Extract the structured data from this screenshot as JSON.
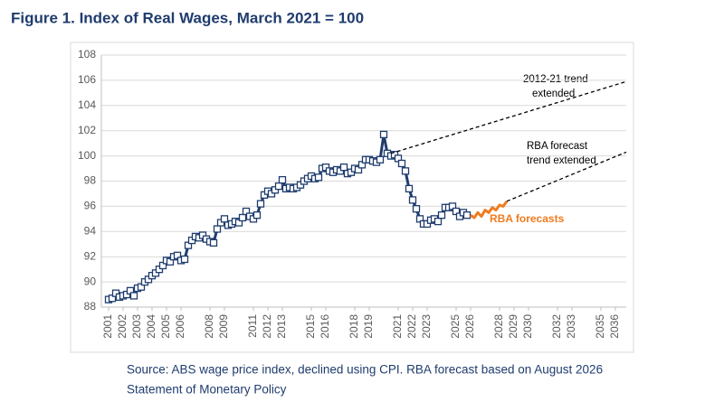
{
  "chart_data": {
    "type": "line",
    "title": "Figure 1. Index of Real Wages, March 2021 = 100",
    "source": [
      "Source: ABS wage price index, declined using CPI. RBA forecast based on August 2026",
      "Statement of Monetary Policy"
    ],
    "annotations": [
      "2012-21 trend",
      "extended",
      "RBA forecast",
      "trend extended",
      "RBA forecasts"
    ],
    "xlim": [
      2000.5,
      2036.75
    ],
    "xticks": [
      2001,
      2002,
      2003,
      2004,
      2005,
      2006,
      2008,
      2009,
      2011,
      2012,
      2013,
      2015,
      2016,
      2018,
      2019,
      2021,
      2022,
      2023,
      2025,
      2026,
      2028,
      2029,
      2030,
      2032,
      2033,
      2035,
      2036
    ],
    "ylim": [
      88,
      108
    ],
    "yticks": [
      88,
      90,
      92,
      94,
      96,
      98,
      100,
      102,
      104,
      106,
      108
    ],
    "grid": true,
    "series": [
      {
        "color": "#1f3c6e",
        "style": "solid",
        "marker": "square",
        "x": [
          2001,
          2001.25,
          2001.5,
          2001.75,
          2002,
          2002.25,
          2002.5,
          2002.75,
          2003,
          2003.25,
          2003.5,
          2003.75,
          2004,
          2004.25,
          2004.5,
          2004.75,
          2005,
          2005.25,
          2005.5,
          2005.75,
          2006,
          2006.25,
          2006.5,
          2006.75,
          2007,
          2007.25,
          2007.5,
          2007.75,
          2008,
          2008.25,
          2008.5,
          2008.75,
          2009,
          2009.25,
          2009.5,
          2009.75,
          2010,
          2010.25,
          2010.5,
          2010.75,
          2011,
          2011.25,
          2011.5,
          2011.75,
          2012,
          2012.25,
          2012.5,
          2012.75,
          2013,
          2013.25,
          2013.5,
          2013.75,
          2014,
          2014.25,
          2014.5,
          2014.75,
          2015,
          2015.25,
          2015.5,
          2015.75,
          2016,
          2016.25,
          2016.5,
          2016.75,
          2017,
          2017.25,
          2017.5,
          2017.75,
          2018,
          2018.25,
          2018.5,
          2018.75,
          2019,
          2019.25,
          2019.5,
          2019.75,
          2020,
          2020.25,
          2020.5,
          2020.75,
          2021,
          2021.25,
          2021.5,
          2021.75,
          2022,
          2022.25,
          2022.5,
          2022.75,
          2023,
          2023.25,
          2023.5,
          2023.75,
          2024,
          2024.25,
          2024.5,
          2024.75,
          2025,
          2025.25,
          2025.5,
          2025.75
        ],
        "values": [
          88.6,
          88.7,
          89.1,
          88.8,
          88.9,
          89.0,
          89.3,
          88.9,
          89.5,
          89.6,
          90.0,
          90.2,
          90.5,
          90.7,
          91.0,
          91.3,
          91.7,
          91.6,
          92.0,
          92.1,
          91.7,
          91.8,
          92.9,
          93.3,
          93.6,
          93.5,
          93.7,
          93.4,
          93.2,
          93.1,
          94.2,
          94.7,
          95.0,
          94.5,
          94.6,
          94.8,
          94.7,
          95.1,
          95.6,
          95.2,
          95.0,
          95.3,
          96.2,
          96.9,
          97.2,
          97.0,
          97.3,
          97.6,
          98.1,
          97.4,
          97.5,
          97.4,
          97.5,
          97.7,
          98.0,
          98.2,
          98.4,
          98.2,
          98.3,
          99.0,
          99.1,
          98.8,
          98.7,
          98.9,
          98.8,
          99.1,
          98.6,
          98.7,
          99.0,
          98.9,
          99.3,
          99.7,
          99.7,
          99.6,
          99.5,
          99.7,
          101.7,
          100.2,
          100.0,
          100.1,
          99.8,
          99.4,
          98.8,
          97.4,
          96.5,
          95.8,
          95.0,
          94.6,
          94.6,
          94.9,
          95.0,
          94.8,
          95.3,
          95.9,
          95.9,
          96.0,
          95.6,
          95.2,
          95.5,
          95.3
        ]
      },
      {
        "color": "#f07b1e",
        "style": "solid",
        "marker": "none",
        "x": [
          2026,
          2026.25,
          2026.5,
          2026.75,
          2027,
          2027.25,
          2027.5,
          2027.75,
          2028,
          2028.25,
          2028.5
        ],
        "values": [
          95.3,
          95.1,
          95.5,
          95.2,
          95.7,
          95.5,
          95.9,
          95.7,
          96.1,
          96.0,
          96.4
        ]
      },
      {
        "color": "#000000",
        "style": "dashed",
        "marker": "none",
        "x": [
          2020.5,
          2036.75
        ],
        "values": [
          100.2,
          105.9
        ]
      },
      {
        "color": "#000000",
        "style": "dashed",
        "marker": "none",
        "x": [
          2028.5,
          2036.75
        ],
        "values": [
          96.4,
          100.3
        ]
      }
    ]
  }
}
